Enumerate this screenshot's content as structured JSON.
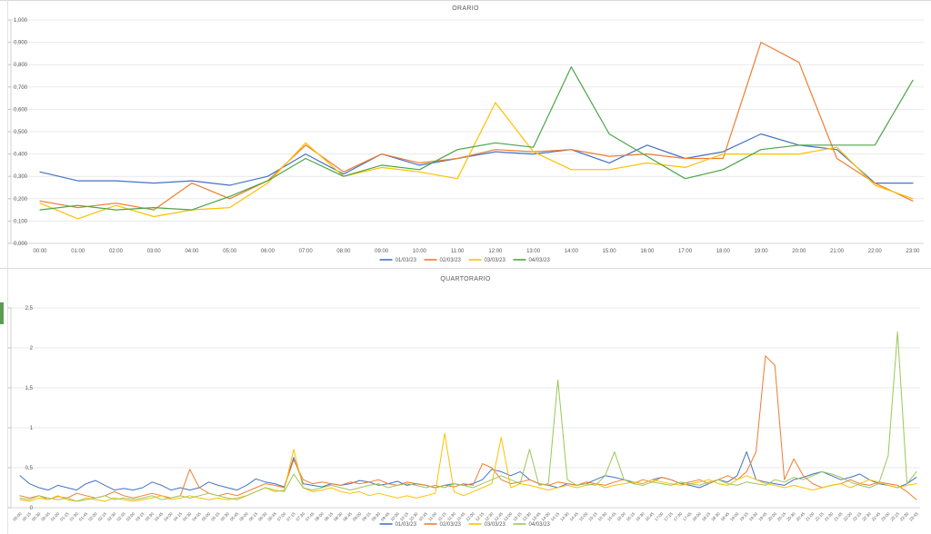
{
  "window": {
    "divider_color": "#d9d9d9",
    "accent_bar_color": "#5b9b52",
    "gridline_color": "#e9e9e9",
    "axis_color": "#d6d6d6",
    "label_color": "#595959"
  },
  "chart_data": [
    {
      "type": "line",
      "title": "ORARIO",
      "legend_position": "bottom",
      "grid": true,
      "xlabel": "",
      "ylabel": "",
      "ylim": [
        0,
        1.0
      ],
      "ytick_step": 0.1,
      "ytick_labels": [
        "0,000",
        "0,100",
        "0,200",
        "0,300",
        "0,400",
        "0,500",
        "0,600",
        "0,700",
        "0,800",
        "0,900",
        "1,000"
      ],
      "categories": [
        "00:00",
        "01:00",
        "02:00",
        "03:00",
        "04:00",
        "05:00",
        "06:00",
        "07:00",
        "08:00",
        "09:00",
        "10:00",
        "11:00",
        "12:00",
        "13:00",
        "14:00",
        "15:00",
        "16:00",
        "17:00",
        "18:00",
        "19:00",
        "20:00",
        "21:00",
        "22:00",
        "23:00"
      ],
      "series": [
        {
          "name": "01/03/23",
          "color": "#4472C4",
          "values": [
            0.32,
            0.28,
            0.28,
            0.27,
            0.28,
            0.26,
            0.3,
            0.4,
            0.31,
            0.4,
            0.35,
            0.38,
            0.41,
            0.4,
            0.42,
            0.36,
            0.44,
            0.38,
            0.41,
            0.49,
            0.44,
            0.42,
            0.27,
            0.27
          ]
        },
        {
          "name": "02/03/23",
          "color": "#ED7D31",
          "values": [
            0.19,
            0.16,
            0.18,
            0.15,
            0.27,
            0.2,
            0.28,
            0.44,
            0.32,
            0.4,
            0.36,
            0.38,
            0.42,
            0.41,
            0.42,
            0.39,
            0.4,
            0.38,
            0.38,
            0.9,
            0.81,
            0.38,
            0.27,
            0.19
          ]
        },
        {
          "name": "03/03/23",
          "color": "#FFC000",
          "values": [
            0.18,
            0.11,
            0.17,
            0.12,
            0.15,
            0.16,
            0.27,
            0.45,
            0.3,
            0.34,
            0.32,
            0.29,
            0.63,
            0.41,
            0.33,
            0.33,
            0.36,
            0.34,
            0.4,
            0.4,
            0.4,
            0.43,
            0.26,
            0.2
          ]
        },
        {
          "name": "04/03/23",
          "color": "#4CA546",
          "values": [
            0.15,
            0.17,
            0.15,
            0.16,
            0.15,
            0.21,
            0.28,
            0.38,
            0.3,
            0.35,
            0.33,
            0.42,
            0.45,
            0.43,
            0.79,
            0.49,
            0.39,
            0.29,
            0.33,
            0.42,
            0.44,
            0.44,
            0.44,
            0.73
          ]
        }
      ]
    },
    {
      "type": "line",
      "title": "QUARTORARIO",
      "legend_position": "bottom",
      "grid": true,
      "xlabel": "",
      "ylabel": "",
      "ylim": [
        0,
        2.5
      ],
      "ytick_step": 0.5,
      "ytick_labels": [
        "0",
        "0,5",
        "1",
        "1,5",
        "2",
        "2,5"
      ],
      "categories": [
        "00:00",
        "00:15",
        "00:30",
        "00:45",
        "01:00",
        "01:15",
        "01:30",
        "01:45",
        "02:00",
        "02:15",
        "02:30",
        "02:45",
        "03:00",
        "03:15",
        "03:30",
        "03:45",
        "04:00",
        "04:15",
        "04:30",
        "04:45",
        "05:00",
        "05:15",
        "05:30",
        "05:45",
        "06:00",
        "06:15",
        "06:30",
        "06:45",
        "07:00",
        "07:15",
        "07:30",
        "07:45",
        "08:00",
        "08:15",
        "08:30",
        "08:45",
        "09:00",
        "09:15",
        "09:30",
        "09:45",
        "10:00",
        "10:15",
        "10:30",
        "10:45",
        "11:00",
        "11:15",
        "11:30",
        "11:45",
        "12:00",
        "12:15",
        "12:30",
        "12:45",
        "13:00",
        "13:15",
        "13:30",
        "13:45",
        "14:00",
        "14:15",
        "14:30",
        "14:45",
        "15:00",
        "15:15",
        "15:30",
        "15:45",
        "16:00",
        "16:15",
        "16:30",
        "16:45",
        "17:00",
        "17:15",
        "17:30",
        "17:45",
        "18:00",
        "18:15",
        "18:30",
        "18:45",
        "19:00",
        "19:15",
        "19:30",
        "19:45",
        "20:00",
        "20:15",
        "20:30",
        "20:45",
        "21:00",
        "21:15",
        "21:30",
        "21:45",
        "22:00",
        "22:15",
        "22:30",
        "22:45",
        "23:00",
        "23:15",
        "23:30",
        "23:45"
      ],
      "series": [
        {
          "name": "01/03/23",
          "color": "#4472C4",
          "values": [
            0.4,
            0.3,
            0.25,
            0.22,
            0.28,
            0.25,
            0.22,
            0.3,
            0.34,
            0.28,
            0.22,
            0.24,
            0.22,
            0.25,
            0.32,
            0.28,
            0.22,
            0.25,
            0.22,
            0.25,
            0.32,
            0.28,
            0.25,
            0.22,
            0.28,
            0.36,
            0.32,
            0.3,
            0.26,
            0.63,
            0.3,
            0.28,
            0.26,
            0.3,
            0.28,
            0.3,
            0.34,
            0.32,
            0.28,
            0.3,
            0.33,
            0.28,
            0.3,
            0.28,
            0.25,
            0.28,
            0.3,
            0.28,
            0.3,
            0.35,
            0.48,
            0.45,
            0.4,
            0.45,
            0.35,
            0.3,
            0.28,
            0.25,
            0.3,
            0.28,
            0.3,
            0.35,
            0.4,
            0.38,
            0.35,
            0.32,
            0.3,
            0.35,
            0.38,
            0.35,
            0.3,
            0.28,
            0.25,
            0.3,
            0.35,
            0.32,
            0.4,
            0.7,
            0.35,
            0.32,
            0.3,
            0.28,
            0.35,
            0.38,
            0.42,
            0.45,
            0.4,
            0.35,
            0.38,
            0.42,
            0.35,
            0.3,
            0.28,
            0.25,
            0.3,
            0.38
          ]
        },
        {
          "name": "02/03/23",
          "color": "#ED7D31",
          "values": [
            0.15,
            0.12,
            0.15,
            0.1,
            0.14,
            0.12,
            0.18,
            0.15,
            0.12,
            0.15,
            0.2,
            0.15,
            0.12,
            0.15,
            0.18,
            0.15,
            0.12,
            0.15,
            0.48,
            0.25,
            0.18,
            0.15,
            0.18,
            0.15,
            0.2,
            0.25,
            0.3,
            0.28,
            0.25,
            0.6,
            0.35,
            0.3,
            0.32,
            0.3,
            0.28,
            0.32,
            0.3,
            0.32,
            0.35,
            0.3,
            0.28,
            0.32,
            0.3,
            0.28,
            0.25,
            0.28,
            0.26,
            0.3,
            0.28,
            0.55,
            0.5,
            0.35,
            0.3,
            0.32,
            0.35,
            0.3,
            0.28,
            0.32,
            0.3,
            0.28,
            0.32,
            0.3,
            0.28,
            0.32,
            0.35,
            0.3,
            0.35,
            0.32,
            0.38,
            0.35,
            0.3,
            0.32,
            0.35,
            0.3,
            0.35,
            0.4,
            0.35,
            0.45,
            0.7,
            1.9,
            1.78,
            0.35,
            0.61,
            0.4,
            0.3,
            0.25,
            0.28,
            0.3,
            0.35,
            0.3,
            0.28,
            0.32,
            0.3,
            0.28,
            0.2,
            0.1
          ]
        },
        {
          "name": "03/03/23",
          "color": "#FFC000",
          "values": [
            0.1,
            0.08,
            0.12,
            0.1,
            0.15,
            0.1,
            0.08,
            0.12,
            0.1,
            0.08,
            0.12,
            0.1,
            0.08,
            0.1,
            0.12,
            0.15,
            0.1,
            0.12,
            0.15,
            0.12,
            0.1,
            0.12,
            0.1,
            0.12,
            0.15,
            0.2,
            0.25,
            0.2,
            0.22,
            0.73,
            0.25,
            0.2,
            0.22,
            0.25,
            0.2,
            0.18,
            0.2,
            0.15,
            0.18,
            0.15,
            0.12,
            0.15,
            0.12,
            0.15,
            0.18,
            0.93,
            0.2,
            0.15,
            0.2,
            0.25,
            0.3,
            0.88,
            0.25,
            0.3,
            0.28,
            0.25,
            0.22,
            0.25,
            0.28,
            0.25,
            0.28,
            0.3,
            0.25,
            0.28,
            0.3,
            0.32,
            0.3,
            0.35,
            0.32,
            0.3,
            0.28,
            0.3,
            0.32,
            0.35,
            0.3,
            0.28,
            0.35,
            0.4,
            0.35,
            0.3,
            0.28,
            0.25,
            0.28,
            0.25,
            0.22,
            0.25,
            0.28,
            0.3,
            0.25,
            0.3,
            0.35,
            0.32,
            0.28,
            0.25,
            0.28,
            0.3
          ]
        },
        {
          "name": "04/03/23",
          "color": "#9CC65A",
          "values": [
            0.12,
            0.1,
            0.15,
            0.12,
            0.1,
            0.12,
            0.08,
            0.1,
            0.12,
            0.15,
            0.1,
            0.12,
            0.1,
            0.12,
            0.15,
            0.1,
            0.12,
            0.15,
            0.12,
            0.15,
            0.18,
            0.15,
            0.12,
            0.1,
            0.15,
            0.2,
            0.25,
            0.22,
            0.2,
            0.42,
            0.25,
            0.22,
            0.25,
            0.28,
            0.25,
            0.22,
            0.25,
            0.28,
            0.3,
            0.25,
            0.28,
            0.3,
            0.28,
            0.25,
            0.28,
            0.25,
            0.3,
            0.28,
            0.25,
            0.3,
            0.35,
            0.4,
            0.35,
            0.3,
            0.73,
            0.28,
            0.3,
            1.6,
            0.35,
            0.28,
            0.3,
            0.28,
            0.4,
            0.7,
            0.35,
            0.3,
            0.28,
            0.32,
            0.3,
            0.28,
            0.32,
            0.3,
            0.28,
            0.32,
            0.35,
            0.3,
            0.28,
            0.32,
            0.3,
            0.28,
            0.35,
            0.32,
            0.38,
            0.35,
            0.4,
            0.45,
            0.42,
            0.38,
            0.32,
            0.28,
            0.25,
            0.3,
            0.65,
            2.2,
            0.3,
            0.45
          ]
        }
      ]
    }
  ]
}
